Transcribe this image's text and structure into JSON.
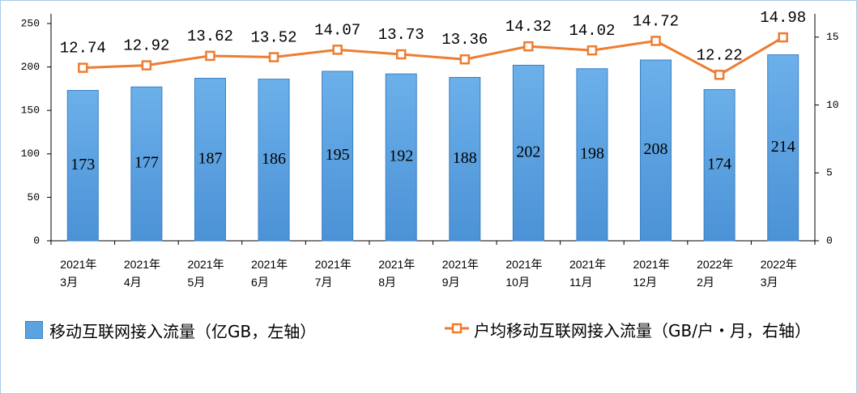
{
  "chart_data": {
    "type": "bar-line",
    "categories": [
      [
        "2021年",
        "3月"
      ],
      [
        "2021年",
        "4月"
      ],
      [
        "2021年",
        "5月"
      ],
      [
        "2021年",
        "6月"
      ],
      [
        "2021年",
        "7月"
      ],
      [
        "2021年",
        "8月"
      ],
      [
        "2021年",
        "9月"
      ],
      [
        "2021年",
        "10月"
      ],
      [
        "2021年",
        "11月"
      ],
      [
        "2021年",
        "12月"
      ],
      [
        "2022年",
        "2月"
      ],
      [
        "2022年",
        "3月"
      ]
    ],
    "series": [
      {
        "name": "移动互联网接入流量（亿GB，左轴）",
        "color": "#5ba3e0",
        "type": "bar",
        "values": [
          173,
          177,
          187,
          186,
          195,
          192,
          188,
          202,
          198,
          208,
          174,
          214
        ]
      },
      {
        "name": "户均移动互联网接入流量（GB/户・月，右轴）",
        "color": "#ed7d31",
        "type": "line",
        "axis": "y2",
        "values": [
          12.74,
          12.92,
          13.62,
          13.52,
          14.07,
          13.73,
          13.36,
          14.32,
          14.02,
          14.72,
          12.22,
          14.98
        ]
      }
    ],
    "ylim": [
      0,
      250
    ],
    "yticks": [
      0,
      50,
      100,
      150,
      200,
      250
    ],
    "y2lim": [
      0,
      16
    ],
    "y2ticks": [
      0,
      5,
      10,
      15
    ]
  }
}
